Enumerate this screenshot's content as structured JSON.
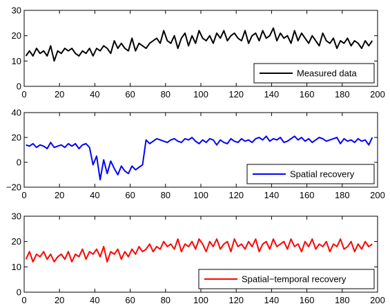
{
  "chart_data": [
    {
      "type": "line",
      "xlim": [
        0,
        200
      ],
      "ylim": [
        0,
        30
      ],
      "xticks": [
        0,
        20,
        40,
        60,
        80,
        100,
        120,
        140,
        160,
        180,
        200
      ],
      "yticks": [
        0,
        10,
        20,
        30
      ],
      "legend_placement": "bottom-right",
      "grid": false,
      "series": [
        {
          "name": "Measured data",
          "color": "#000000",
          "x": [
            1,
            3,
            5,
            7,
            9,
            11,
            13,
            15,
            17,
            19,
            21,
            23,
            25,
            27,
            29,
            31,
            33,
            35,
            37,
            39,
            41,
            43,
            45,
            47,
            49,
            51,
            53,
            55,
            57,
            59,
            61,
            63,
            65,
            67,
            69,
            71,
            73,
            75,
            77,
            79,
            81,
            83,
            85,
            87,
            89,
            91,
            93,
            95,
            97,
            99,
            101,
            103,
            105,
            107,
            109,
            111,
            113,
            115,
            117,
            119,
            121,
            123,
            125,
            127,
            129,
            131,
            133,
            135,
            137,
            139,
            141,
            143,
            145,
            147,
            149,
            151,
            153,
            155,
            157,
            159,
            161,
            163,
            165,
            167,
            169,
            171,
            173,
            175,
            177,
            179,
            181,
            183,
            185,
            187,
            189,
            191,
            193,
            195,
            197
          ],
          "y": [
            12,
            14,
            12,
            15,
            13,
            14,
            12,
            16,
            10,
            14,
            13,
            15,
            14,
            15,
            13,
            12,
            14,
            13,
            15,
            12,
            15,
            14,
            16,
            15,
            13,
            18,
            15,
            17,
            15,
            14,
            19,
            14,
            17,
            16,
            15,
            17,
            18,
            19,
            17,
            22,
            18,
            17,
            20,
            15,
            19,
            21,
            16,
            20,
            17,
            22,
            19,
            18,
            20,
            17,
            21,
            19,
            22,
            18,
            20,
            21,
            19,
            18,
            22,
            17,
            20,
            21,
            18,
            22,
            19,
            20,
            23,
            18,
            21,
            19,
            20,
            17,
            22,
            18,
            21,
            19,
            17,
            20,
            18,
            16,
            21,
            18,
            17,
            19,
            15,
            18,
            17,
            19,
            16,
            18,
            17,
            15,
            18,
            16,
            18
          ]
        }
      ]
    },
    {
      "type": "line",
      "xlim": [
        0,
        200
      ],
      "ylim": [
        -20,
        40
      ],
      "xticks": [
        0,
        20,
        40,
        60,
        80,
        100,
        120,
        140,
        160,
        180,
        200
      ],
      "yticks": [
        -20,
        0,
        20,
        40
      ],
      "legend_placement": "bottom-right",
      "grid": false,
      "series": [
        {
          "name": "Spatial recovery",
          "color": "#0000ff",
          "x": [
            1,
            3,
            5,
            7,
            9,
            11,
            13,
            15,
            17,
            19,
            21,
            23,
            25,
            27,
            29,
            31,
            33,
            35,
            37,
            39,
            41,
            43,
            45,
            47,
            49,
            51,
            53,
            55,
            57,
            59,
            61,
            63,
            65,
            67,
            69,
            71,
            73,
            75,
            77,
            79,
            81,
            83,
            85,
            87,
            89,
            91,
            93,
            95,
            97,
            99,
            101,
            103,
            105,
            107,
            109,
            111,
            113,
            115,
            117,
            119,
            121,
            123,
            125,
            127,
            129,
            131,
            133,
            135,
            137,
            139,
            141,
            143,
            145,
            147,
            149,
            151,
            153,
            155,
            157,
            159,
            161,
            163,
            165,
            167,
            169,
            171,
            173,
            175,
            177,
            179,
            181,
            183,
            185,
            187,
            189,
            191,
            193,
            195,
            197
          ],
          "y": [
            14,
            13,
            15,
            12,
            14,
            13,
            11,
            16,
            12,
            13,
            14,
            12,
            15,
            13,
            15,
            11,
            14,
            15,
            12,
            -2,
            5,
            -14,
            2,
            -9,
            1,
            -5,
            -10,
            -3,
            -7,
            -9,
            -3,
            -6,
            -4,
            -2,
            18,
            15,
            17,
            19,
            18,
            17,
            16,
            18,
            19,
            17,
            16,
            19,
            18,
            20,
            17,
            15,
            18,
            16,
            19,
            18,
            14,
            18,
            16,
            15,
            19,
            17,
            16,
            19,
            17,
            18,
            16,
            19,
            20,
            18,
            21,
            17,
            19,
            18,
            20,
            16,
            17,
            19,
            21,
            18,
            20,
            17,
            19,
            16,
            18,
            20,
            19,
            17,
            18,
            19,
            20,
            15,
            19,
            17,
            18,
            16,
            19,
            17,
            18,
            14,
            20
          ]
        }
      ]
    },
    {
      "type": "line",
      "xlim": [
        0,
        200
      ],
      "ylim": [
        0,
        30
      ],
      "xticks": [
        0,
        20,
        40,
        60,
        80,
        100,
        120,
        140,
        160,
        180,
        200
      ],
      "yticks": [
        0,
        10,
        20,
        30
      ],
      "legend_placement": "bottom-right",
      "grid": false,
      "series": [
        {
          "name": "Spatial−temporal recovery",
          "color": "#ff0000",
          "x": [
            1,
            3,
            5,
            7,
            9,
            11,
            13,
            15,
            17,
            19,
            21,
            23,
            25,
            27,
            29,
            31,
            33,
            35,
            37,
            39,
            41,
            43,
            45,
            47,
            49,
            51,
            53,
            55,
            57,
            59,
            61,
            63,
            65,
            67,
            69,
            71,
            73,
            75,
            77,
            79,
            81,
            83,
            85,
            87,
            89,
            91,
            93,
            95,
            97,
            99,
            101,
            103,
            105,
            107,
            109,
            111,
            113,
            115,
            117,
            119,
            121,
            123,
            125,
            127,
            129,
            131,
            133,
            135,
            137,
            139,
            141,
            143,
            145,
            147,
            149,
            151,
            153,
            155,
            157,
            159,
            161,
            163,
            165,
            167,
            169,
            171,
            173,
            175,
            177,
            179,
            181,
            183,
            185,
            187,
            189,
            191,
            193,
            195,
            197
          ],
          "y": [
            13,
            16,
            12,
            15,
            14,
            16,
            13,
            15,
            12,
            14,
            15,
            13,
            16,
            12,
            15,
            14,
            17,
            13,
            16,
            15,
            17,
            14,
            18,
            12,
            16,
            15,
            17,
            13,
            16,
            14,
            17,
            15,
            18,
            16,
            17,
            19,
            16,
            18,
            17,
            20,
            18,
            19,
            17,
            21,
            16,
            19,
            18,
            20,
            17,
            21,
            19,
            16,
            20,
            18,
            21,
            17,
            19,
            20,
            16,
            21,
            18,
            19,
            17,
            20,
            18,
            21,
            16,
            19,
            20,
            17,
            21,
            18,
            19,
            20,
            17,
            21,
            18,
            19,
            16,
            20,
            18,
            21,
            17,
            19,
            18,
            20,
            16,
            19,
            18,
            21,
            17,
            18,
            20,
            16,
            19,
            17,
            20,
            18,
            19
          ]
        }
      ]
    }
  ]
}
